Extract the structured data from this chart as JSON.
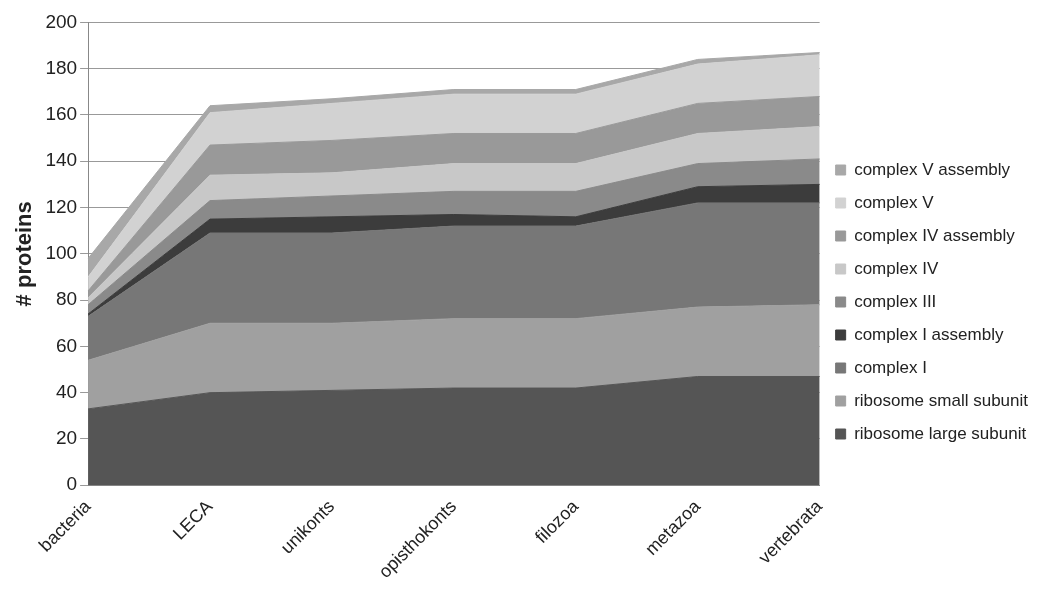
{
  "chart_data": {
    "type": "area",
    "stacked": true,
    "ylabel": "# proteins",
    "categories": [
      "bacteria",
      "LECA",
      "unikonts",
      "opisthokonts",
      "filozoa",
      "metazoa",
      "vertebrata"
    ],
    "ylim": [
      0,
      200
    ],
    "yticks": [
      0,
      20,
      40,
      60,
      80,
      100,
      120,
      140,
      160,
      180,
      200
    ],
    "grid": "y",
    "legend": "right",
    "series": [
      {
        "name": "ribosome large subunit",
        "color": "#555555",
        "values": [
          33,
          40,
          41,
          42,
          42,
          47,
          47
        ]
      },
      {
        "name": "ribosome small subunit",
        "color": "#a0a0a0",
        "values": [
          21,
          30,
          29,
          30,
          30,
          30,
          31
        ]
      },
      {
        "name": "complex I",
        "color": "#777777",
        "values": [
          19,
          39,
          39,
          40,
          40,
          45,
          44
        ]
      },
      {
        "name": "complex I assembly",
        "color": "#3c3c3c",
        "values": [
          1,
          6,
          7,
          5,
          4,
          7,
          8
        ]
      },
      {
        "name": "complex III",
        "color": "#8a8a8a",
        "values": [
          4,
          8,
          9,
          10,
          11,
          10,
          11
        ]
      },
      {
        "name": "complex IV",
        "color": "#c8c8c8",
        "values": [
          3,
          11,
          10,
          12,
          12,
          13,
          14
        ]
      },
      {
        "name": "complex IV assembly",
        "color": "#999999",
        "values": [
          3,
          13,
          14,
          13,
          13,
          13,
          13
        ]
      },
      {
        "name": "complex V",
        "color": "#d2d2d2",
        "values": [
          6,
          14,
          16,
          17,
          17,
          17,
          18
        ]
      },
      {
        "name": "complex V assembly",
        "color": "#a8a8a8",
        "values": [
          8,
          3,
          2,
          2,
          2,
          2,
          1
        ]
      }
    ]
  }
}
